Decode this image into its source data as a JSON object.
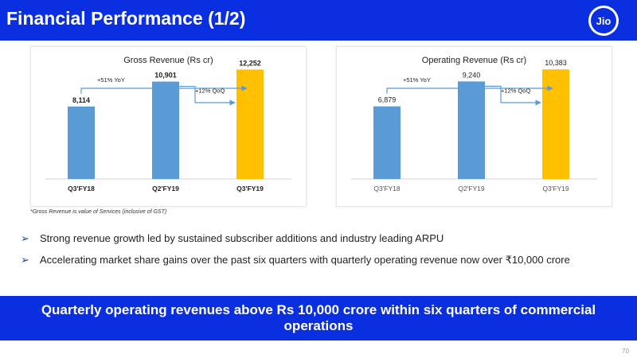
{
  "header": {
    "title": "Financial Performance (1/2)",
    "logo_text": "Jio",
    "background": "#0a2fe0"
  },
  "chart_data": [
    {
      "type": "bar",
      "title": "Gross Revenue (Rs cr)",
      "categories": [
        "Q3'FY18",
        "Q2'FY19",
        "Q3'FY19"
      ],
      "values": [
        8114,
        10901,
        12252
      ],
      "value_labels": [
        "8,114",
        "10,901",
        "12,252"
      ],
      "colors": [
        "#5b9bd5",
        "#5b9bd5",
        "#ffc000"
      ],
      "ylim": [
        0,
        13000
      ],
      "grid": false,
      "annotations": {
        "yoy": "+51% YoY",
        "qoq": "+12% QoQ"
      },
      "labels_bold": true
    },
    {
      "type": "bar",
      "title": "Operating Revenue (Rs cr)",
      "categories": [
        "Q3'FY18",
        "Q2'FY19",
        "Q3'FY19"
      ],
      "values": [
        6879,
        9240,
        10383
      ],
      "value_labels": [
        "6,879",
        "9,240",
        "10,383"
      ],
      "colors": [
        "#5b9bd5",
        "#5b9bd5",
        "#ffc000"
      ],
      "ylim": [
        0,
        11000
      ],
      "grid": false,
      "annotations": {
        "yoy": "+51% YoY",
        "qoq": "+12% QoQ"
      },
      "labels_bold": false
    }
  ],
  "footnote": "*Gross Revenue is value of Services (inclusive of GST)",
  "bullets": [
    "Strong revenue growth led by sustained subscriber additions and industry leading ARPU",
    "Accelerating market share gains over the past six quarters with quarterly operating revenue now over ₹10,000 crore"
  ],
  "banner": "Quarterly operating revenues above Rs 10,000 crore within six quarters of commercial operations",
  "page_number": "70"
}
